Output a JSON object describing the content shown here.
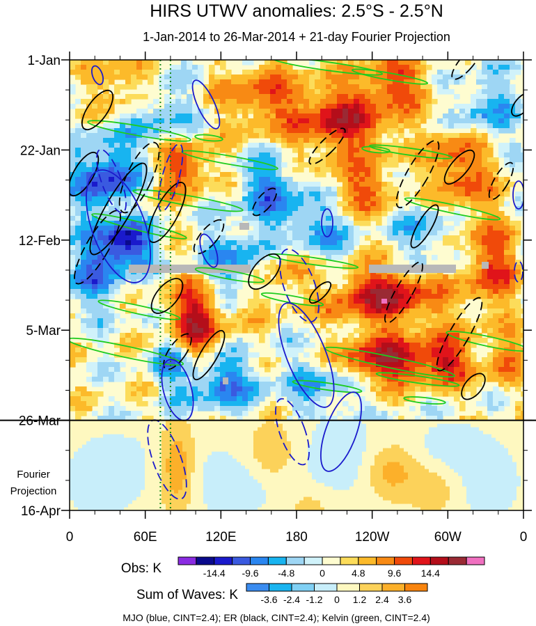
{
  "chart_data": {
    "type": "heatmap",
    "title": "HIRS UTWV anomalies: 2.5°S - 2.5°N",
    "subtitle": "1-Jan-2014 to 26-Mar-2014 + 21-day Fourier Projection",
    "x_ticks": [
      {
        "lon": 0,
        "label": "0"
      },
      {
        "lon": 60,
        "label": "60E"
      },
      {
        "lon": 120,
        "label": "120E"
      },
      {
        "lon": 180,
        "label": "180"
      },
      {
        "lon": 240,
        "label": "120W"
      },
      {
        "lon": 300,
        "label": "60W"
      },
      {
        "lon": 360,
        "label": "0"
      }
    ],
    "y_ticks": [
      {
        "day": 0,
        "label": "1-Jan"
      },
      {
        "day": 21,
        "label": "22-Jan"
      },
      {
        "day": 42,
        "label": "12-Feb"
      },
      {
        "day": 63,
        "label": "5-Mar"
      },
      {
        "day": 84,
        "label": "26-Mar"
      },
      {
        "day": 105,
        "label": "16-Apr"
      }
    ],
    "xlim": [
      0,
      360
    ],
    "ylim_days": [
      0,
      105
    ],
    "observation_end_day": 84,
    "projection_label": [
      "Fourier",
      "Projection"
    ],
    "reference_lon_lines": [
      72,
      80
    ],
    "obs_colorbar": {
      "label": "Obs: K",
      "tick_labels": [
        "-14.4",
        "-9.6",
        "-4.8",
        "0",
        "4.8",
        "9.6",
        "14.4"
      ],
      "colors": [
        "#8a2be2",
        "#0a0a8c",
        "#1a1acc",
        "#3a5ae0",
        "#2a86f0",
        "#18b4f0",
        "#9ed6f4",
        "#d0f2fa",
        "#fefcd0",
        "#fcdc5a",
        "#fcba2a",
        "#f88a14",
        "#f04a0a",
        "#e0141a",
        "#b40e1a",
        "#9a2a34",
        "#f070c0"
      ]
    },
    "waves_colorbar": {
      "label": "Sum of Waves: K",
      "tick_labels": [
        "-3.6",
        "-2.4",
        "-1.2",
        "0",
        "1.2",
        "2.4",
        "3.6"
      ],
      "colors": [
        "#3a8cf0",
        "#1ab4f0",
        "#80d0f4",
        "#c8eefa",
        "#fef8c0",
        "#fcd25a",
        "#fcb02a",
        "#f8840e"
      ]
    },
    "contour_series": [
      {
        "name": "MJO",
        "color": "#1a1acc"
      },
      {
        "name": "ER",
        "color": "#000000"
      },
      {
        "name": "Kelvin",
        "color": "#1ecc1e"
      }
    ],
    "footer": "MJO (blue, CINT=2.4); ER (black, CINT=2.4); Kelvin (green, CINT=2.4)"
  }
}
